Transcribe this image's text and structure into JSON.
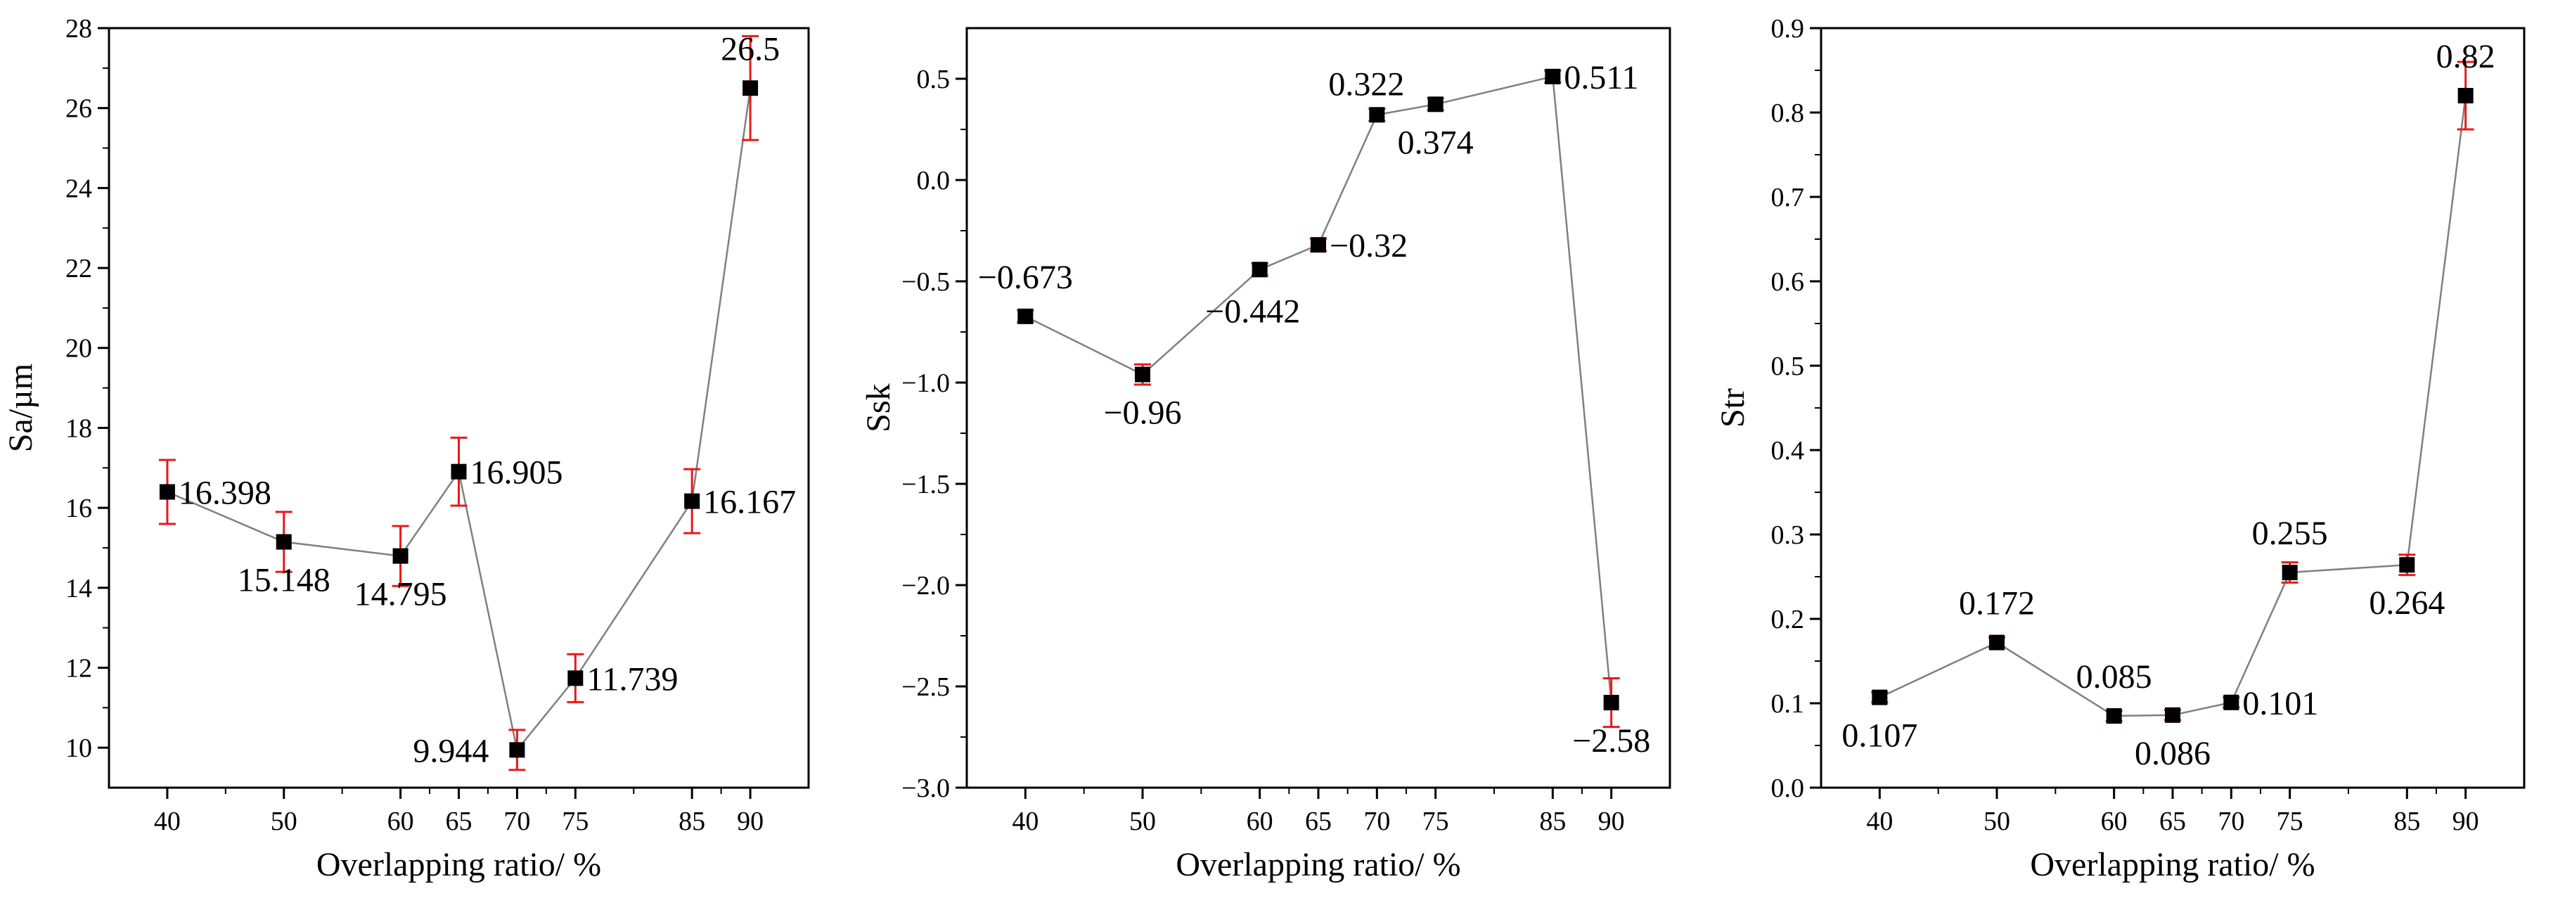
{
  "chart_data": [
    {
      "type": "line",
      "title": "",
      "xlabel": "Overlapping ratio/ %",
      "ylabel": "Sa/µm",
      "xlim": [
        35,
        95
      ],
      "ylim": [
        9,
        28
      ],
      "x_ticks": [
        40,
        50,
        60,
        65,
        70,
        75,
        85,
        90
      ],
      "y_ticks": [
        10,
        12,
        14,
        16,
        18,
        20,
        22,
        24,
        26,
        28
      ],
      "y_tick_labels": [
        "10",
        "12",
        "14",
        "16",
        "18",
        "20",
        "22",
        "24",
        "26",
        "28"
      ],
      "series": [
        {
          "name": "Sa",
          "x": [
            40,
            50,
            60,
            65,
            70,
            75,
            85,
            90
          ],
          "values": [
            16.398,
            15.148,
            14.795,
            16.905,
            9.944,
            11.739,
            16.167,
            26.5
          ],
          "errors": [
            0.8,
            0.75,
            0.75,
            0.85,
            0.5,
            0.6,
            0.8,
            1.3
          ],
          "labels": [
            "16.398",
            "15.148",
            "14.795",
            "16.905",
            "9.944",
            "11.739",
            "16.167",
            "26.5"
          ],
          "label_pos": [
            "right",
            "below",
            "below",
            "right",
            "left",
            "right",
            "right",
            "above"
          ]
        }
      ]
    },
    {
      "type": "line",
      "title": "",
      "xlabel": "Overlapping ratio/ %",
      "ylabel": "Ssk",
      "xlim": [
        35,
        95
      ],
      "ylim": [
        -3.0,
        0.75
      ],
      "x_ticks": [
        40,
        50,
        60,
        65,
        70,
        75,
        85,
        90
      ],
      "y_ticks": [
        -3.0,
        -2.5,
        -2.0,
        -1.5,
        -1.0,
        -0.5,
        0.0,
        0.5
      ],
      "y_tick_labels": [
        "−3.0",
        "−2.5",
        "−2.0",
        "−1.5",
        "−1.0",
        "−0.5",
        "0.0",
        "0.5"
      ],
      "series": [
        {
          "name": "Ssk",
          "x": [
            40,
            50,
            60,
            65,
            70,
            75,
            85,
            90
          ],
          "values": [
            -0.673,
            -0.96,
            -0.442,
            -0.32,
            0.322,
            0.374,
            0.511,
            -2.58
          ],
          "errors": [
            0.03,
            0.05,
            0.03,
            0.03,
            0.03,
            0.03,
            0.03,
            0.12
          ],
          "labels": [
            "−0.673",
            "−0.96",
            "−0.442",
            "−0.32",
            "0.322",
            "0.374",
            "0.511",
            "−2.58"
          ],
          "label_pos": [
            "above",
            "below",
            "below-left",
            "right",
            "above-left",
            "below",
            "right",
            "below"
          ]
        }
      ]
    },
    {
      "type": "line",
      "title": "",
      "xlabel": "Overlapping ratio/ %",
      "ylabel": "Str",
      "xlim": [
        35,
        95
      ],
      "ylim": [
        0.0,
        0.9
      ],
      "x_ticks": [
        40,
        50,
        60,
        65,
        70,
        75,
        85,
        90
      ],
      "y_ticks": [
        0.0,
        0.1,
        0.2,
        0.3,
        0.4,
        0.5,
        0.6,
        0.7,
        0.8,
        0.9
      ],
      "y_tick_labels": [
        "0.0",
        "0.1",
        "0.2",
        "0.3",
        "0.4",
        "0.5",
        "0.6",
        "0.7",
        "0.8",
        "0.9"
      ],
      "series": [
        {
          "name": "Str",
          "x": [
            40,
            50,
            60,
            65,
            70,
            75,
            85,
            90
          ],
          "values": [
            0.107,
            0.172,
            0.085,
            0.086,
            0.101,
            0.255,
            0.264,
            0.82
          ],
          "errors": [
            0.006,
            0.006,
            0.006,
            0.006,
            0.006,
            0.012,
            0.012,
            0.04
          ],
          "labels": [
            "0.107",
            "0.172",
            "0.085",
            "0.086",
            "0.101",
            "0.255",
            "0.264",
            "0.82"
          ],
          "label_pos": [
            "below",
            "above",
            "above",
            "below",
            "right",
            "above",
            "below",
            "above"
          ]
        }
      ]
    }
  ],
  "colors": {
    "line": "#808080",
    "marker": "#000000",
    "error_bar": "#e8191b",
    "axis": "#000000",
    "background": "#ffffff"
  }
}
